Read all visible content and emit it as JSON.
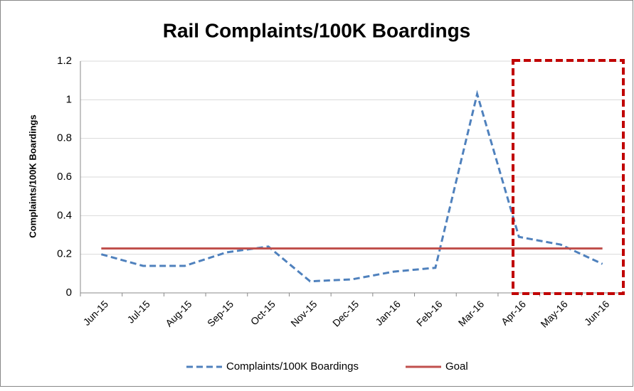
{
  "chart_data": {
    "type": "line",
    "title": "Rail Complaints/100K Boardings",
    "y_label": "Complaints/100K Boardings",
    "categories": [
      "Jun-15",
      "Jul-15",
      "Aug-15",
      "Sep-15",
      "Oct-15",
      "Nov-15",
      "Dec-15",
      "Jan-16",
      "Feb-16",
      "Mar-16",
      "Apr-16",
      "May-16",
      "Jun-16"
    ],
    "series": [
      {
        "name": "Complaints/100K Boardings",
        "color": "#4f81bd",
        "dash": true,
        "values": [
          0.2,
          0.14,
          0.14,
          0.21,
          0.24,
          0.06,
          0.07,
          0.11,
          0.13,
          1.03,
          0.29,
          0.25,
          0.15
        ]
      },
      {
        "name": "Goal",
        "color": "#c0504d",
        "dash": false,
        "values": [
          0.23,
          0.23,
          0.23,
          0.23,
          0.23,
          0.23,
          0.23,
          0.23,
          0.23,
          0.23,
          0.23,
          0.23,
          0.23
        ]
      }
    ],
    "ylim": [
      0,
      1.2
    ],
    "yticks": [
      0,
      0.2,
      0.4,
      0.6,
      0.8,
      1,
      1.2
    ],
    "grid": true,
    "legend": "bottom"
  }
}
